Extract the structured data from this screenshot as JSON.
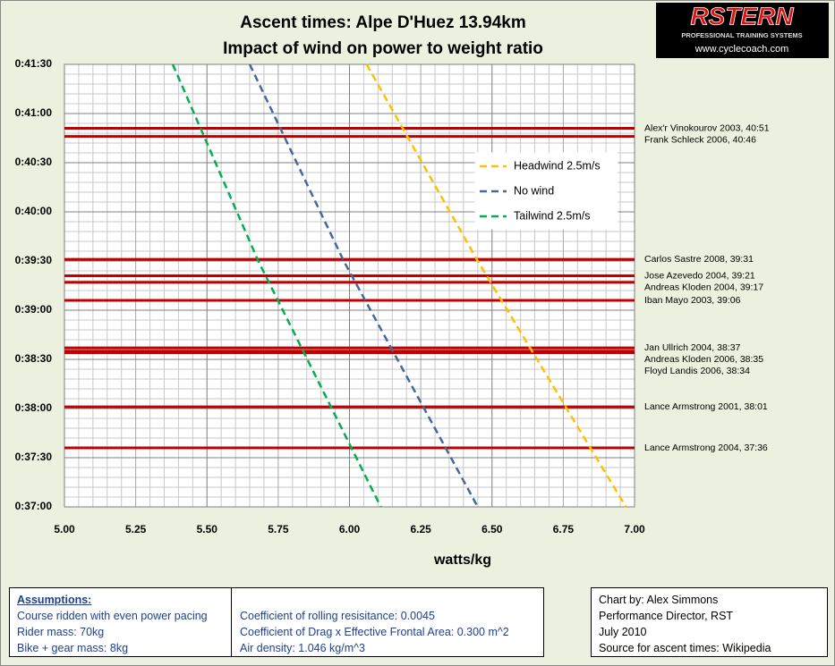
{
  "chart_data": {
    "type": "line",
    "title": [
      "Ascent times: Alpe D'Huez 13.94km",
      "Impact of wind on power to weight ratio"
    ],
    "x_label": "watts/kg",
    "xlim": [
      5,
      7
    ],
    "xticks": [
      {
        "value": 5,
        "label": "5.00"
      },
      5.25,
      {
        "value": 5.5,
        "label": "5.50"
      },
      5.75,
      {
        "value": 6,
        "label": "6.00"
      },
      6.25,
      {
        "value": 6.5,
        "label": "6.50"
      },
      6.75,
      {
        "value": 7,
        "label": "7.00"
      }
    ],
    "ylim": [
      2220,
      2490
    ],
    "yticks": [
      {
        "value": 2220,
        "label": "0:37:00"
      },
      {
        "value": 2250,
        "label": "0:37:30"
      },
      {
        "value": 2280,
        "label": "0:38:00"
      },
      {
        "value": 2310,
        "label": "0:38:30"
      },
      {
        "value": 2340,
        "label": "0:39:00"
      },
      {
        "value": 2370,
        "label": "0:39:30"
      },
      {
        "value": 2400,
        "label": "0:40:00"
      },
      {
        "value": 2430,
        "label": "0:40:30"
      },
      {
        "value": 2460,
        "label": "0:41:00"
      },
      {
        "value": 2490,
        "label": "0:41:30"
      }
    ],
    "grid": true,
    "series": [
      {
        "name": "Headwind 2.5m/s",
        "color": "#ffc000",
        "x": [
          6.06,
          6.45,
          6.97
        ],
        "values": [
          2490,
          2370,
          2220
        ]
      },
      {
        "name": "No wind",
        "color": "#44699b",
        "x": [
          5.65,
          5.98,
          6.45
        ],
        "values": [
          2490,
          2370,
          2220
        ]
      },
      {
        "name": "Tailwind 2.5m/s",
        "color": "#00b050",
        "x": [
          5.38,
          5.68,
          6.11
        ],
        "values": [
          2490,
          2370,
          2220
        ]
      }
    ],
    "reference_color": "#c00000",
    "reference_lines": [
      {
        "label": "Alex'r Vinokourov 2003, 40:51",
        "value": 2451
      },
      {
        "label": "Frank Schleck 2006, 40:46",
        "value": 2446
      },
      {
        "label": "Carlos Sastre  2008, 39:31",
        "value": 2371
      },
      {
        "label": "Jose Azevedo 2004, 39:21",
        "value": 2361
      },
      {
        "label": "Andreas Kloden 2004, 39:17",
        "value": 2357
      },
      {
        "label": "Iban Mayo 2003, 39:06",
        "value": 2346
      },
      {
        "label": "Jan Ullrich 2004, 38:37",
        "value": 2317
      },
      {
        "label": "Andreas Kloden 2006, 38:35",
        "value": 2315
      },
      {
        "label": "Floyd Landis  2006, 38:34",
        "value": 2314
      },
      {
        "label": "Lance Armstrong 2001, 38:01",
        "value": 2281
      },
      {
        "label": "Lance Armstrong 2004, 37:36",
        "value": 2256
      }
    ]
  },
  "logo": {
    "name": "RSTERN",
    "tagline": "PROFESSIONAL TRAINING SYSTEMS",
    "url": "www.cyclecoach.com"
  },
  "assumptions": {
    "title": "Assumptions:",
    "left": [
      "Course ridden with even power pacing",
      "Rider mass: 70kg",
      "Bike + gear mass: 8kg"
    ],
    "right": [
      "Coefficient of rolling resisitance: 0.0045",
      "Coefficient of Drag x Effective Frontal Area: 0.300  m^2",
      "Air density: 1.046  kg/m^3"
    ]
  },
  "credits": [
    "Chart by: Alex Simmons",
    "Performance Director, RST",
    "July 2010",
    "Source for ascent times: Wikipedia"
  ]
}
